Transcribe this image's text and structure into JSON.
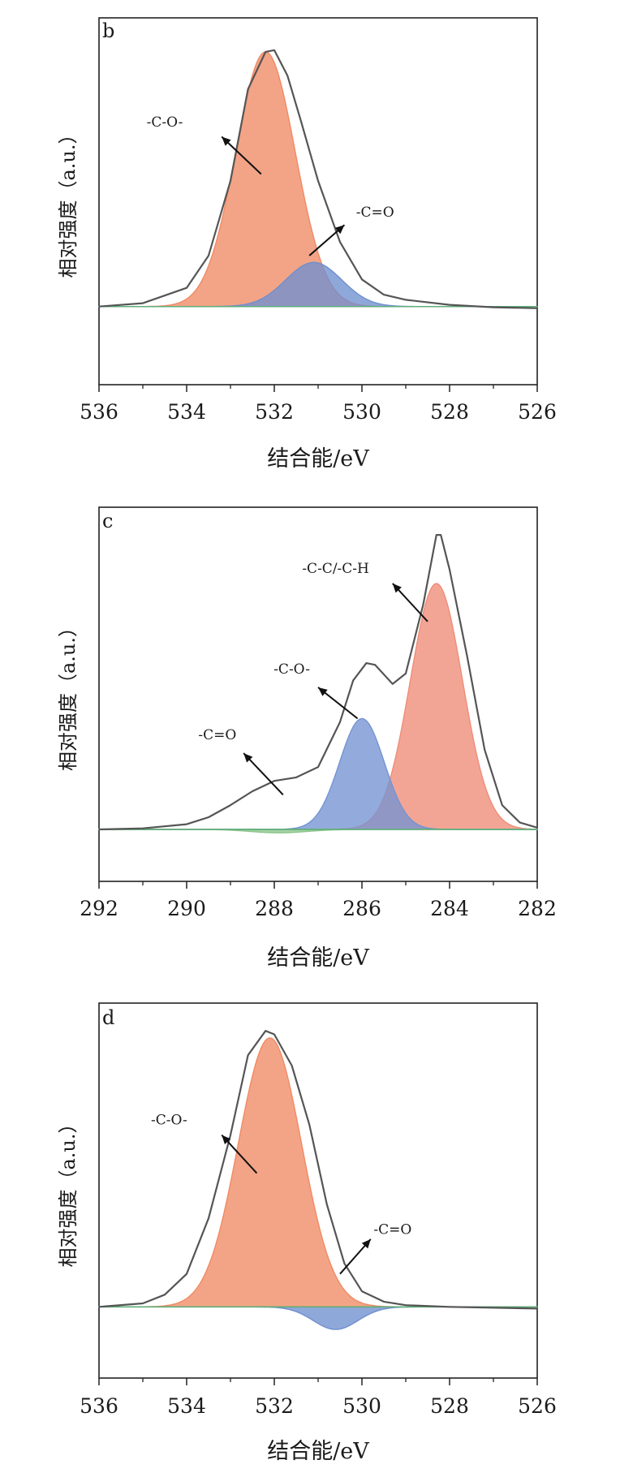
{
  "chart_data": [
    {
      "type": "area",
      "panel_label": "b",
      "xlabel": "结合能/eV",
      "ylabel": "相对强度（a.u.）",
      "xlim": [
        536,
        526
      ],
      "x_reversed": true,
      "ylim": [
        0,
        1.08
      ],
      "baseline": 0.23,
      "xticks": [
        536,
        534,
        532,
        530,
        528,
        526
      ],
      "envelope": {
        "points": [
          [
            536,
            0.23
          ],
          [
            535,
            0.24
          ],
          [
            534,
            0.285
          ],
          [
            533.5,
            0.38
          ],
          [
            533,
            0.6
          ],
          [
            532.6,
            0.87
          ],
          [
            532.2,
            0.98
          ],
          [
            532,
            0.985
          ],
          [
            531.7,
            0.91
          ],
          [
            531.4,
            0.78
          ],
          [
            531,
            0.6
          ],
          [
            530.5,
            0.42
          ],
          [
            530,
            0.31
          ],
          [
            529.5,
            0.265
          ],
          [
            529,
            0.25
          ],
          [
            528,
            0.235
          ],
          [
            527,
            0.228
          ],
          [
            526,
            0.225
          ]
        ]
      },
      "peaks": [
        {
          "label": "-C-O-",
          "center": 532.2,
          "height": 0.98,
          "fwhm": 1.6,
          "color": "#f08a64"
        },
        {
          "label": "-C=O",
          "center": 531.1,
          "height": 0.36,
          "fwhm": 1.5,
          "color": "#6f8fcf"
        }
      ],
      "annotations": [
        {
          "text": "-C-O-",
          "peak": 0,
          "text_at": [
            534.5,
            0.76
          ],
          "arrow_from": [
            533.2,
            0.73
          ],
          "arrow_to": [
            532.3,
            0.62
          ]
        },
        {
          "text": "-C=O",
          "peak": 1,
          "text_at": [
            529.7,
            0.495
          ],
          "arrow_from": [
            530.4,
            0.47
          ],
          "arrow_to": [
            531.2,
            0.38
          ]
        }
      ]
    },
    {
      "type": "area",
      "panel_label": "c",
      "xlabel": "结合能/eV",
      "ylabel": "相对强度（a.u.）",
      "xlim": [
        292,
        282
      ],
      "x_reversed": true,
      "ylim": [
        0,
        1.08
      ],
      "baseline": 0.15,
      "xticks": [
        292,
        290,
        288,
        286,
        284,
        282
      ],
      "envelope": {
        "points": [
          [
            292,
            0.15
          ],
          [
            291,
            0.153
          ],
          [
            290,
            0.165
          ],
          [
            289.5,
            0.185
          ],
          [
            289,
            0.22
          ],
          [
            288.5,
            0.26
          ],
          [
            288,
            0.29
          ],
          [
            287.5,
            0.3
          ],
          [
            287,
            0.33
          ],
          [
            286.5,
            0.46
          ],
          [
            286.2,
            0.58
          ],
          [
            285.9,
            0.63
          ],
          [
            285.7,
            0.625
          ],
          [
            285.3,
            0.57
          ],
          [
            285,
            0.6
          ],
          [
            284.6,
            0.8
          ],
          [
            284.3,
            1.0
          ],
          [
            284.2,
            1.0
          ],
          [
            284,
            0.9
          ],
          [
            283.6,
            0.65
          ],
          [
            283.2,
            0.38
          ],
          [
            282.8,
            0.22
          ],
          [
            282.4,
            0.17
          ],
          [
            282,
            0.155
          ]
        ]
      },
      "peaks": [
        {
          "label": "-C-C/-C-H",
          "center": 284.3,
          "height": 0.86,
          "fwhm": 1.4,
          "color": "#ef8c77"
        },
        {
          "label": "-C-O-",
          "center": 286.0,
          "height": 0.47,
          "fwhm": 1.2,
          "color": "#7494d2"
        },
        {
          "label": "-C=O",
          "center": 287.9,
          "height": 0.14,
          "fwhm": 1.5,
          "color": "#8cc58c"
        }
      ],
      "annotations": [
        {
          "text": "-C-C/-C-H",
          "peak": 0,
          "text_at": [
            286.6,
            0.89
          ],
          "arrow_from": [
            285.3,
            0.86
          ],
          "arrow_to": [
            284.5,
            0.75
          ]
        },
        {
          "text": "-C=O",
          "peak": 2,
          "text_at": [
            289.3,
            0.41
          ],
          "arrow_from": [
            288.7,
            0.37
          ],
          "arrow_to": [
            287.8,
            0.25
          ]
        },
        {
          "text": "-C-O-",
          "peak": 1,
          "text_at": [
            287.6,
            0.6
          ],
          "arrow_from": [
            287,
            0.56
          ],
          "arrow_to": [
            286.1,
            0.47
          ]
        }
      ]
    },
    {
      "type": "area",
      "panel_label": "d",
      "xlabel": "结合能/eV",
      "ylabel": "相对强度（a.u.）",
      "xlim": [
        536,
        526
      ],
      "x_reversed": true,
      "ylim": [
        0,
        1.08
      ],
      "baseline": 0.205,
      "xticks": [
        536,
        534,
        532,
        530,
        528,
        526
      ],
      "envelope": {
        "points": [
          [
            536,
            0.205
          ],
          [
            535,
            0.215
          ],
          [
            534.5,
            0.24
          ],
          [
            534,
            0.3
          ],
          [
            533.5,
            0.46
          ],
          [
            533,
            0.7
          ],
          [
            532.6,
            0.93
          ],
          [
            532.2,
            1.0
          ],
          [
            532,
            0.99
          ],
          [
            531.6,
            0.9
          ],
          [
            531.2,
            0.73
          ],
          [
            530.8,
            0.5
          ],
          [
            530.4,
            0.33
          ],
          [
            530,
            0.25
          ],
          [
            529.5,
            0.22
          ],
          [
            529,
            0.21
          ],
          [
            528,
            0.205
          ],
          [
            526,
            0.2
          ]
        ]
      },
      "peaks": [
        {
          "label": "-C-O-",
          "center": 532.1,
          "height": 0.98,
          "fwhm": 1.7,
          "color": "#f08a64"
        },
        {
          "label": "-C=O",
          "center": 530.6,
          "height": 0.14,
          "fwhm": 1.2,
          "color": "#6f8fcf"
        }
      ],
      "annotations": [
        {
          "text": "-C-O-",
          "peak": 0,
          "text_at": [
            534.4,
            0.73
          ],
          "arrow_from": [
            533.2,
            0.7
          ],
          "arrow_to": [
            532.4,
            0.59
          ]
        },
        {
          "text": "-C=O",
          "peak": 1,
          "text_at": [
            529.3,
            0.415
          ],
          "arrow_from": [
            529.8,
            0.4
          ],
          "arrow_to": [
            530.5,
            0.3
          ]
        }
      ]
    }
  ]
}
